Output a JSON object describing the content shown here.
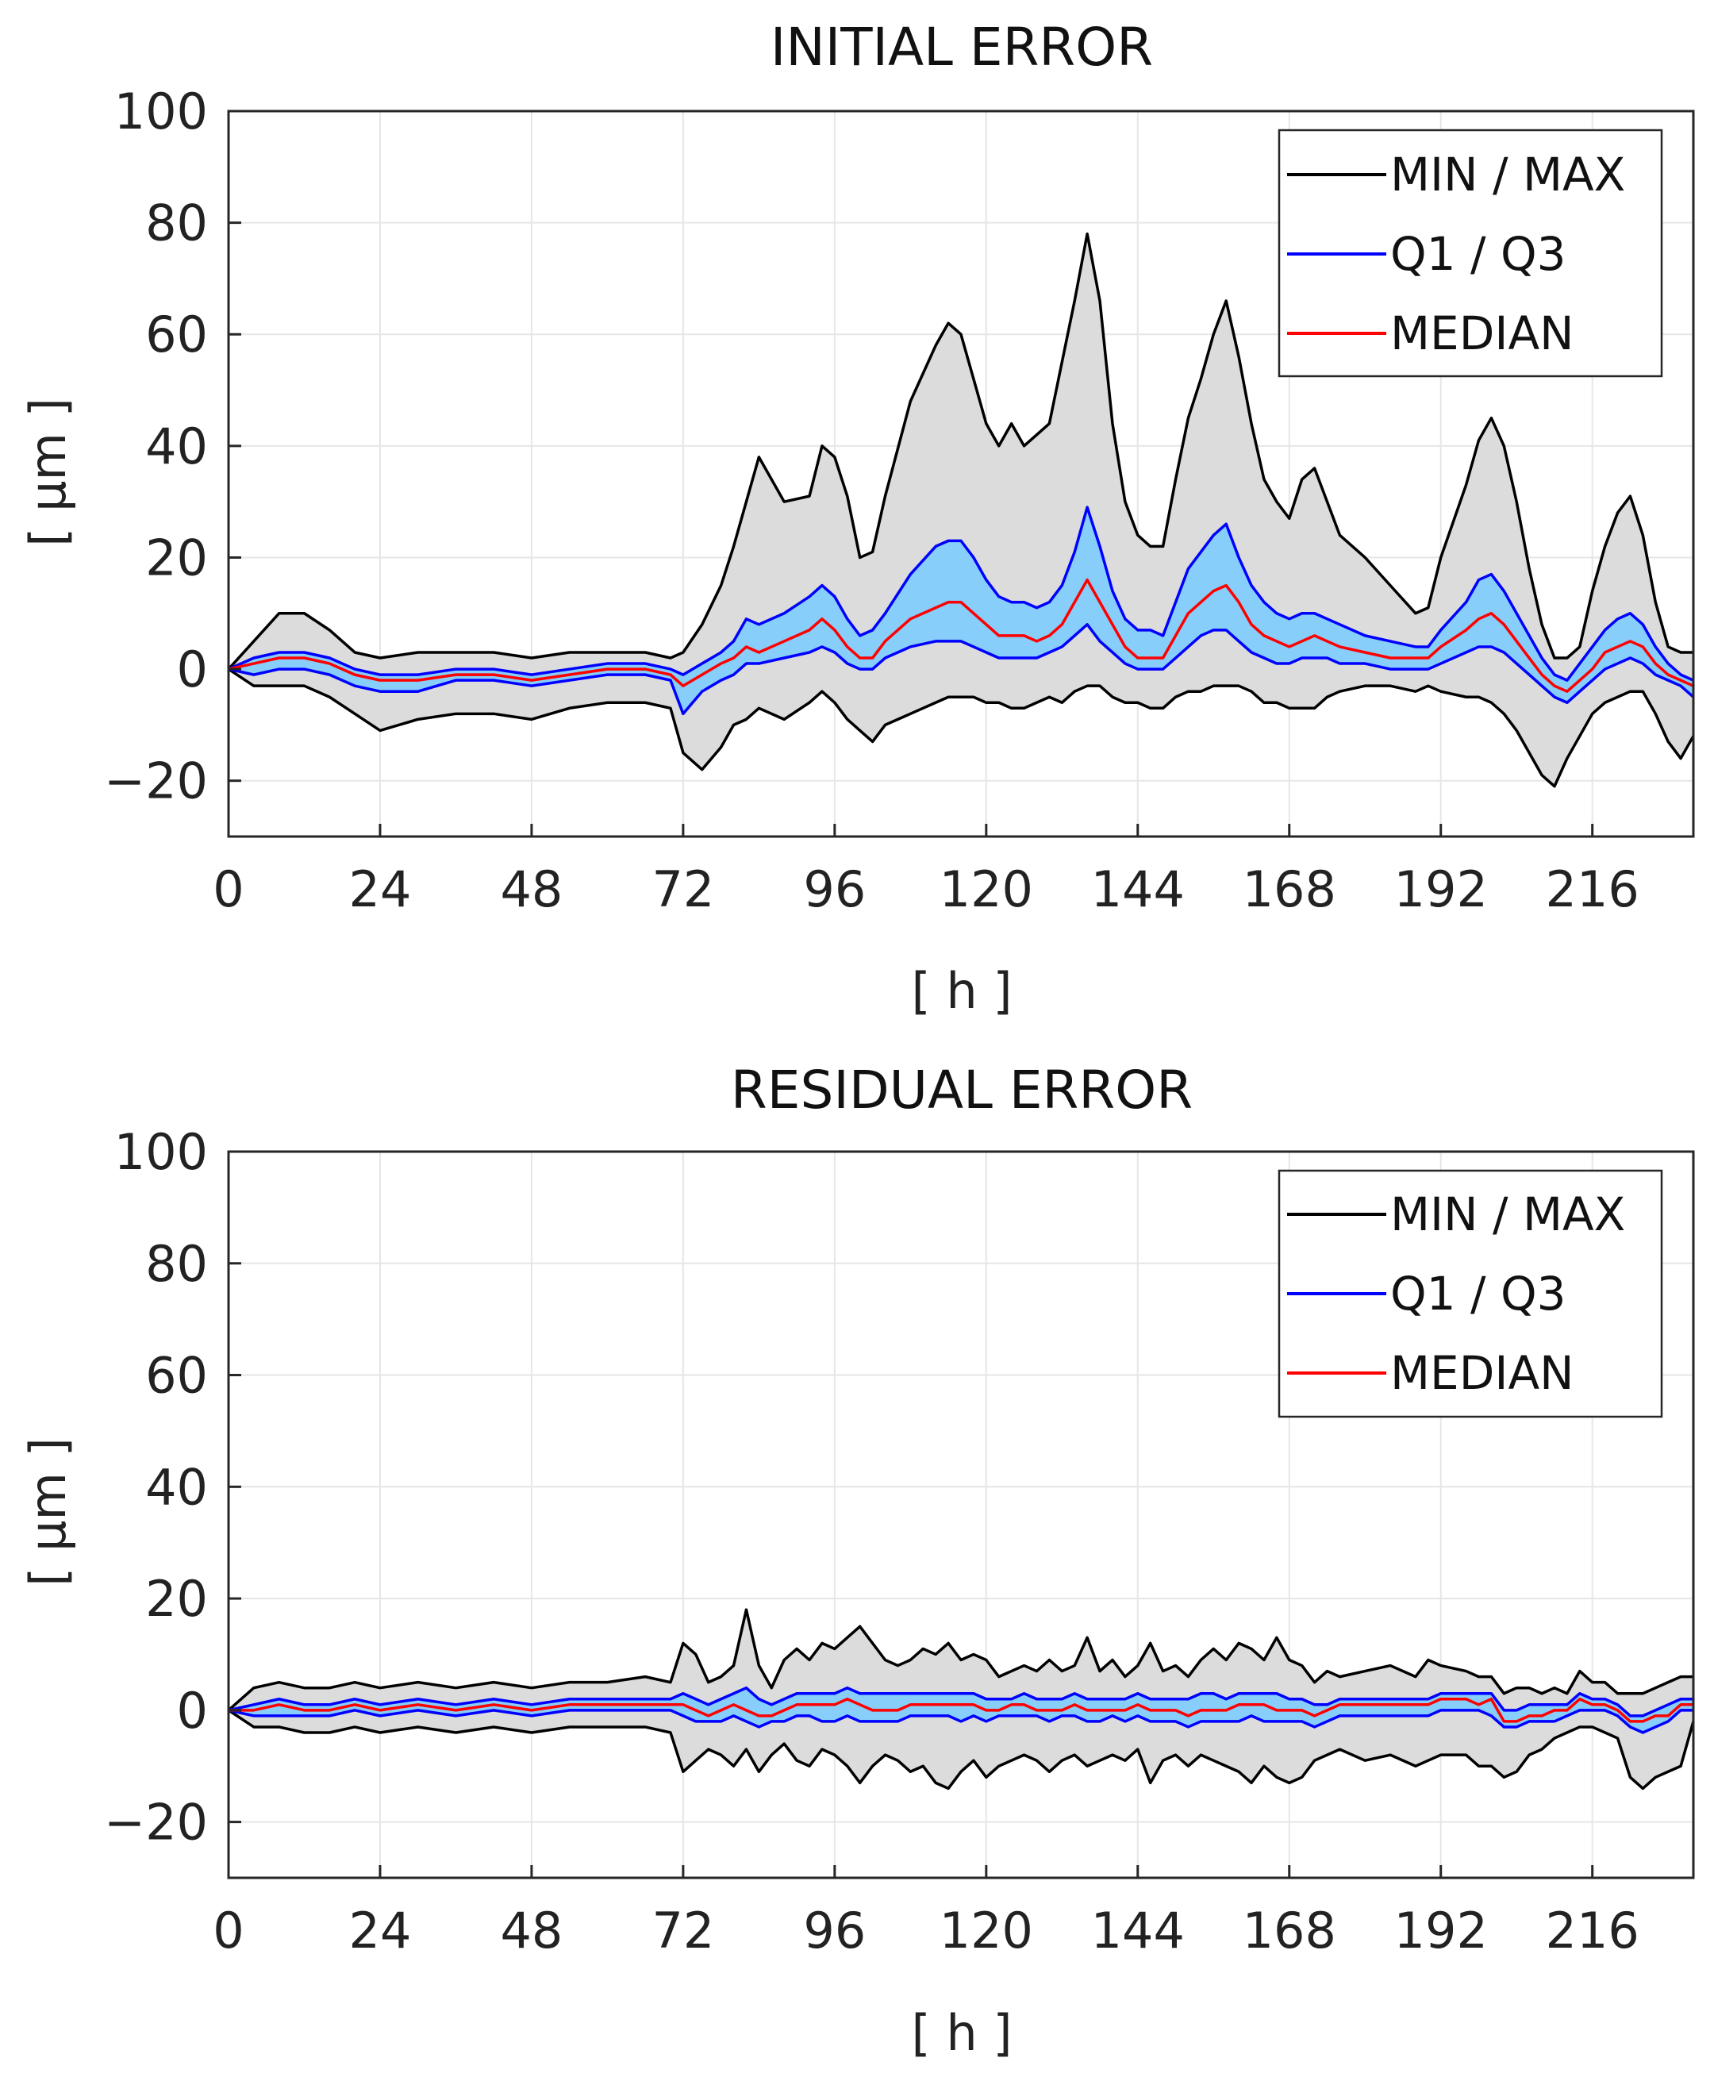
{
  "colors": {
    "minmax_line": "#000000",
    "minmax_fill": "#dcdcdc",
    "quartile_line": "#0000ff",
    "quartile_fill": "#87cefa",
    "median_line": "#ff0000",
    "grid": "#e6e6e6",
    "axis": "#262626"
  },
  "chart_data": [
    {
      "type": "area",
      "title": "INITIAL ERROR",
      "xlabel": "[ h ]",
      "ylabel": "[ μm ]",
      "xlim": [
        0,
        232
      ],
      "ylim": [
        -30,
        100
      ],
      "xticks": [
        0,
        24,
        48,
        72,
        96,
        120,
        144,
        168,
        192,
        216
      ],
      "yticks": [
        100,
        80,
        60,
        40,
        20,
        0,
        -20
      ],
      "ytick_labels": [
        "100",
        "80",
        "60",
        "40",
        "20",
        "0",
        "−20"
      ],
      "grid": true,
      "legend_position": "top-right",
      "legend": [
        "MIN / MAX",
        "Q1 / Q3",
        "MEDIAN"
      ],
      "x": [
        0,
        4,
        8,
        12,
        16,
        20,
        24,
        30,
        36,
        42,
        48,
        54,
        60,
        66,
        70,
        72,
        75,
        78,
        80,
        82,
        84,
        88,
        92,
        94,
        96,
        98,
        100,
        102,
        104,
        108,
        112,
        114,
        116,
        118,
        120,
        122,
        124,
        126,
        128,
        130,
        132,
        134,
        136,
        138,
        140,
        142,
        144,
        146,
        148,
        150,
        152,
        154,
        156,
        158,
        160,
        162,
        164,
        166,
        168,
        170,
        172,
        174,
        176,
        180,
        184,
        188,
        190,
        192,
        196,
        198,
        200,
        202,
        204,
        206,
        208,
        210,
        212,
        214,
        216,
        218,
        220,
        222,
        224,
        226,
        228,
        230,
        232
      ],
      "series": [
        {
          "name": "MAX",
          "values": [
            0,
            5,
            10,
            10,
            7,
            3,
            2,
            3,
            3,
            3,
            2,
            3,
            3,
            3,
            2,
            3,
            8,
            15,
            22,
            30,
            38,
            30,
            31,
            40,
            38,
            31,
            20,
            21,
            31,
            48,
            58,
            62,
            60,
            52,
            44,
            40,
            44,
            40,
            42,
            44,
            55,
            66,
            78,
            66,
            44,
            30,
            24,
            22,
            22,
            34,
            45,
            52,
            60,
            66,
            56,
            44,
            34,
            30,
            27,
            34,
            36,
            30,
            24,
            20,
            15,
            10,
            11,
            20,
            33,
            41,
            45,
            40,
            30,
            18,
            8,
            2,
            2,
            4,
            14,
            22,
            28,
            31,
            24,
            12,
            4,
            3,
            3
          ]
        },
        {
          "name": "Q3",
          "values": [
            0,
            2,
            3,
            3,
            2,
            0,
            -1,
            -1,
            0,
            0,
            -1,
            0,
            1,
            1,
            0,
            -1,
            1,
            3,
            5,
            9,
            8,
            10,
            13,
            15,
            13,
            9,
            6,
            7,
            10,
            17,
            22,
            23,
            23,
            20,
            16,
            13,
            12,
            12,
            11,
            12,
            15,
            21,
            29,
            22,
            14,
            9,
            7,
            7,
            6,
            12,
            18,
            21,
            24,
            26,
            20,
            15,
            12,
            10,
            9,
            10,
            10,
            9,
            8,
            6,
            5,
            4,
            4,
            7,
            12,
            16,
            17,
            14,
            10,
            6,
            2,
            -1,
            -2,
            1,
            4,
            7,
            9,
            10,
            8,
            4,
            1,
            -1,
            -2
          ]
        },
        {
          "name": "MEDIAN",
          "values": [
            0,
            1,
            2,
            2,
            1,
            -1,
            -2,
            -2,
            -1,
            -1,
            -2,
            -1,
            0,
            0,
            -1,
            -3,
            -1,
            1,
            2,
            4,
            3,
            5,
            7,
            9,
            7,
            4,
            2,
            2,
            5,
            9,
            11,
            12,
            12,
            10,
            8,
            6,
            6,
            6,
            5,
            6,
            8,
            12,
            16,
            12,
            8,
            4,
            2,
            2,
            2,
            6,
            10,
            12,
            14,
            15,
            12,
            8,
            6,
            5,
            4,
            5,
            6,
            5,
            4,
            3,
            2,
            2,
            2,
            4,
            7,
            9,
            10,
            8,
            5,
            2,
            -1,
            -3,
            -4,
            -2,
            0,
            3,
            4,
            5,
            4,
            1,
            -1,
            -2,
            -3
          ]
        },
        {
          "name": "Q1",
          "values": [
            0,
            -1,
            0,
            0,
            -1,
            -3,
            -4,
            -4,
            -2,
            -2,
            -3,
            -2,
            -1,
            -1,
            -2,
            -8,
            -4,
            -2,
            -1,
            1,
            1,
            2,
            3,
            4,
            3,
            1,
            0,
            0,
            2,
            4,
            5,
            5,
            5,
            4,
            3,
            2,
            2,
            2,
            2,
            3,
            4,
            6,
            8,
            5,
            3,
            1,
            0,
            0,
            0,
            2,
            4,
            6,
            7,
            7,
            5,
            3,
            2,
            1,
            1,
            2,
            2,
            2,
            1,
            1,
            0,
            0,
            0,
            1,
            3,
            4,
            4,
            3,
            1,
            -1,
            -3,
            -5,
            -6,
            -4,
            -2,
            0,
            1,
            2,
            1,
            -1,
            -2,
            -3,
            -5
          ]
        },
        {
          "name": "MIN",
          "values": [
            0,
            -3,
            -3,
            -3,
            -5,
            -8,
            -11,
            -9,
            -8,
            -8,
            -9,
            -7,
            -6,
            -6,
            -7,
            -15,
            -18,
            -14,
            -10,
            -9,
            -7,
            -9,
            -6,
            -4,
            -6,
            -9,
            -11,
            -13,
            -10,
            -8,
            -6,
            -5,
            -5,
            -5,
            -6,
            -6,
            -7,
            -7,
            -6,
            -5,
            -6,
            -4,
            -3,
            -3,
            -5,
            -6,
            -6,
            -7,
            -7,
            -5,
            -4,
            -4,
            -3,
            -3,
            -3,
            -4,
            -6,
            -6,
            -7,
            -7,
            -7,
            -5,
            -4,
            -3,
            -3,
            -4,
            -3,
            -4,
            -5,
            -5,
            -6,
            -8,
            -11,
            -15,
            -19,
            -21,
            -16,
            -12,
            -8,
            -6,
            -5,
            -4,
            -4,
            -8,
            -13,
            -16,
            -12
          ]
        }
      ]
    },
    {
      "type": "area",
      "title": "RESIDUAL ERROR",
      "xlabel": "[ h ]",
      "ylabel": "[ μm ]",
      "xlim": [
        0,
        232
      ],
      "ylim": [
        -30,
        100
      ],
      "xticks": [
        0,
        24,
        48,
        72,
        96,
        120,
        144,
        168,
        192,
        216
      ],
      "yticks": [
        100,
        80,
        60,
        40,
        20,
        0,
        -20
      ],
      "ytick_labels": [
        "100",
        "80",
        "60",
        "40",
        "20",
        "0",
        "−20"
      ],
      "grid": true,
      "legend_position": "top-right",
      "legend": [
        "MIN / MAX",
        "Q1 / Q3",
        "MEDIAN"
      ],
      "x": [
        0,
        4,
        8,
        12,
        16,
        20,
        24,
        30,
        36,
        42,
        48,
        54,
        60,
        66,
        70,
        72,
        74,
        76,
        78,
        80,
        82,
        84,
        86,
        88,
        90,
        92,
        94,
        96,
        98,
        100,
        102,
        104,
        106,
        108,
        110,
        112,
        114,
        116,
        118,
        120,
        122,
        124,
        126,
        128,
        130,
        132,
        134,
        136,
        138,
        140,
        142,
        144,
        146,
        148,
        150,
        152,
        154,
        156,
        158,
        160,
        162,
        164,
        166,
        168,
        170,
        172,
        174,
        176,
        180,
        184,
        188,
        190,
        192,
        196,
        198,
        200,
        202,
        204,
        206,
        208,
        210,
        212,
        214,
        216,
        218,
        220,
        222,
        224,
        226,
        228,
        230,
        232
      ],
      "series": [
        {
          "name": "MAX",
          "values": [
            0,
            4,
            5,
            4,
            4,
            5,
            4,
            5,
            4,
            5,
            4,
            5,
            5,
            6,
            5,
            12,
            10,
            5,
            6,
            8,
            18,
            8,
            4,
            9,
            11,
            9,
            12,
            11,
            13,
            15,
            12,
            9,
            8,
            9,
            11,
            10,
            12,
            9,
            10,
            9,
            6,
            7,
            8,
            7,
            9,
            7,
            8,
            13,
            7,
            9,
            6,
            8,
            12,
            7,
            8,
            6,
            9,
            11,
            9,
            12,
            11,
            9,
            13,
            9,
            8,
            5,
            7,
            6,
            7,
            8,
            6,
            9,
            8,
            7,
            6,
            6,
            3,
            4,
            4,
            3,
            4,
            3,
            7,
            5,
            5,
            3,
            3,
            3,
            4,
            5,
            6,
            6
          ]
        },
        {
          "name": "Q3",
          "values": [
            0,
            1,
            2,
            1,
            1,
            2,
            1,
            2,
            1,
            2,
            1,
            2,
            2,
            2,
            2,
            3,
            2,
            1,
            2,
            3,
            4,
            2,
            1,
            2,
            3,
            3,
            3,
            3,
            4,
            3,
            3,
            3,
            3,
            3,
            3,
            3,
            3,
            3,
            3,
            2,
            2,
            2,
            3,
            2,
            2,
            2,
            3,
            2,
            2,
            2,
            2,
            3,
            2,
            2,
            2,
            2,
            3,
            3,
            2,
            3,
            3,
            3,
            3,
            2,
            2,
            1,
            1,
            2,
            2,
            2,
            2,
            2,
            3,
            3,
            3,
            3,
            0,
            0,
            1,
            1,
            1,
            1,
            3,
            2,
            2,
            1,
            -1,
            -1,
            0,
            1,
            2,
            2
          ]
        },
        {
          "name": "MEDIAN",
          "values": [
            0,
            0,
            1,
            0,
            0,
            1,
            0,
            1,
            0,
            1,
            0,
            1,
            1,
            1,
            1,
            1,
            0,
            -1,
            0,
            1,
            0,
            -1,
            -1,
            0,
            1,
            1,
            1,
            1,
            2,
            1,
            0,
            0,
            0,
            1,
            1,
            1,
            1,
            1,
            1,
            0,
            0,
            1,
            1,
            0,
            0,
            0,
            1,
            0,
            0,
            0,
            0,
            1,
            0,
            0,
            0,
            -1,
            0,
            0,
            0,
            1,
            1,
            1,
            0,
            0,
            0,
            -1,
            0,
            1,
            1,
            1,
            1,
            1,
            2,
            2,
            1,
            2,
            -2,
            -2,
            -1,
            -1,
            0,
            0,
            2,
            1,
            1,
            0,
            -2,
            -2,
            -1,
            -1,
            1,
            1
          ]
        },
        {
          "name": "Q1",
          "values": [
            0,
            -1,
            -1,
            -1,
            -1,
            0,
            -1,
            0,
            -1,
            0,
            -1,
            0,
            0,
            0,
            0,
            -1,
            -2,
            -2,
            -2,
            -1,
            -2,
            -3,
            -2,
            -2,
            -1,
            -1,
            -2,
            -2,
            -1,
            -2,
            -2,
            -2,
            -2,
            -1,
            -1,
            -1,
            -1,
            -2,
            -1,
            -2,
            -1,
            -1,
            -1,
            -1,
            -2,
            -1,
            -1,
            -2,
            -2,
            -1,
            -2,
            -1,
            -2,
            -2,
            -2,
            -3,
            -2,
            -2,
            -2,
            -2,
            -1,
            -2,
            -2,
            -2,
            -2,
            -3,
            -2,
            -1,
            -1,
            -1,
            -1,
            -1,
            0,
            0,
            0,
            -1,
            -3,
            -3,
            -2,
            -2,
            -2,
            -1,
            0,
            0,
            0,
            -1,
            -3,
            -4,
            -3,
            -2,
            0,
            0
          ]
        },
        {
          "name": "MIN",
          "values": [
            0,
            -3,
            -3,
            -4,
            -4,
            -3,
            -4,
            -3,
            -4,
            -3,
            -4,
            -3,
            -3,
            -3,
            -4,
            -11,
            -9,
            -7,
            -8,
            -10,
            -7,
            -11,
            -8,
            -6,
            -9,
            -10,
            -7,
            -8,
            -10,
            -13,
            -10,
            -8,
            -9,
            -11,
            -10,
            -13,
            -14,
            -11,
            -9,
            -12,
            -10,
            -9,
            -8,
            -9,
            -11,
            -9,
            -8,
            -10,
            -9,
            -8,
            -9,
            -7,
            -13,
            -9,
            -8,
            -10,
            -8,
            -9,
            -10,
            -11,
            -13,
            -10,
            -12,
            -13,
            -12,
            -9,
            -8,
            -7,
            -9,
            -8,
            -10,
            -9,
            -8,
            -8,
            -10,
            -10,
            -12,
            -11,
            -8,
            -7,
            -5,
            -4,
            -3,
            -3,
            -4,
            -5,
            -12,
            -14,
            -12,
            -11,
            -10,
            -2
          ]
        }
      ]
    }
  ]
}
